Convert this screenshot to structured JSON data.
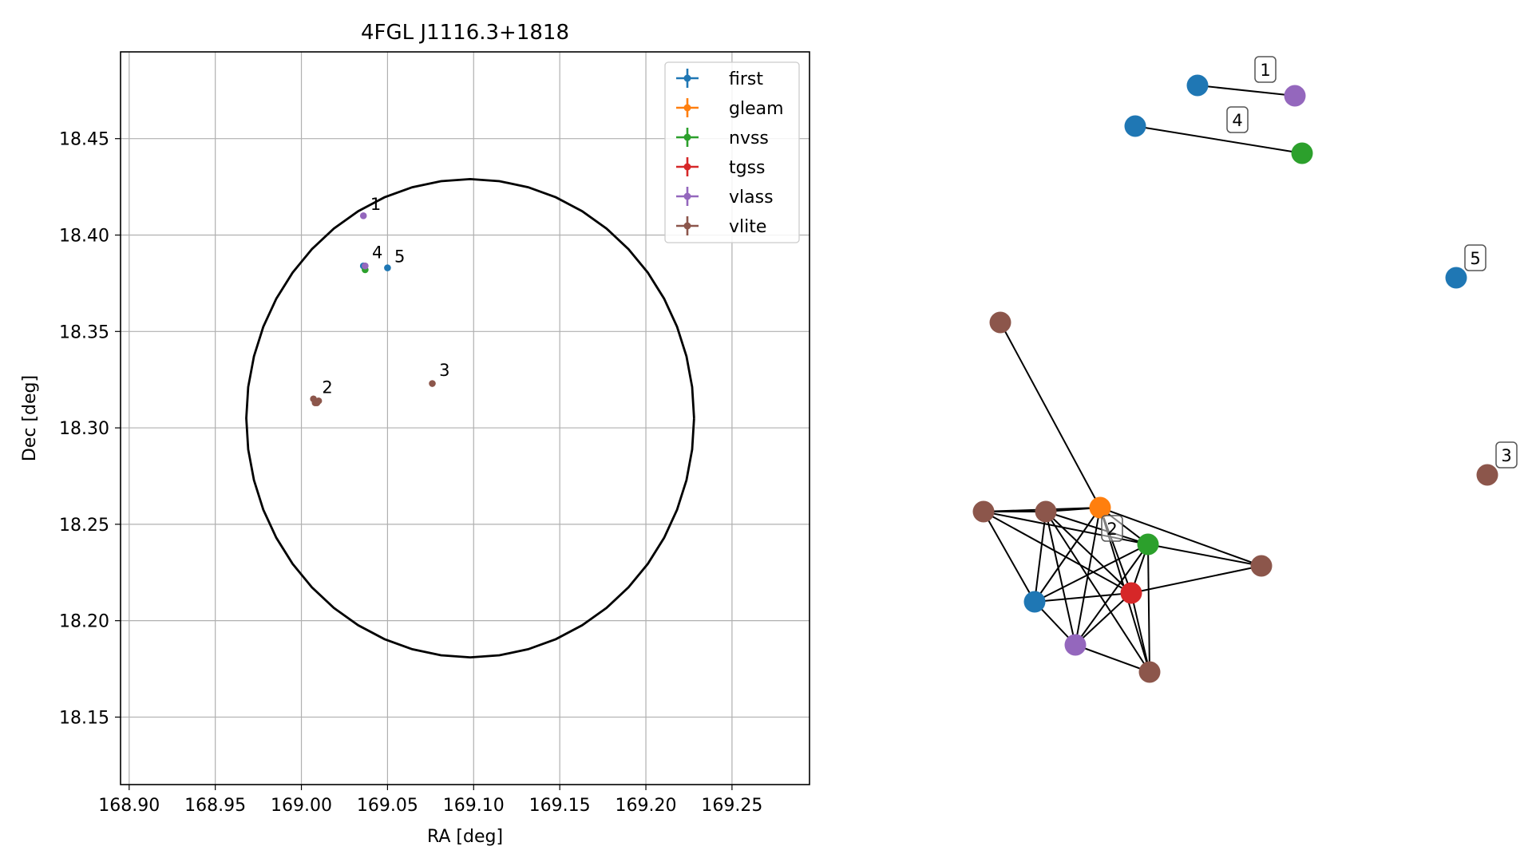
{
  "chart_data": [
    {
      "type": "scatter",
      "title": "4FGL J1116.3+1818",
      "xlabel": "RA [deg]",
      "ylabel": "Dec [deg]",
      "xlim": [
        168.895,
        169.295
      ],
      "ylim": [
        18.115,
        18.495
      ],
      "xticks": [
        "168.90",
        "168.95",
        "169.00",
        "169.05",
        "169.10",
        "169.15",
        "169.20",
        "169.25"
      ],
      "yticks": [
        "18.15",
        "18.20",
        "18.25",
        "18.30",
        "18.35",
        "18.40",
        "18.45"
      ],
      "grid": true,
      "legend_position": "top-right",
      "circle": {
        "center": [
          169.098,
          18.305
        ],
        "ra_radius": 0.13,
        "dec_radius": 0.124
      },
      "series": [
        {
          "name": "first",
          "color": "#1f77b4",
          "points": [
            [
              169.036,
              18.384
            ],
            [
              169.05,
              18.383
            ]
          ]
        },
        {
          "name": "gleam",
          "color": "#ff7f0e",
          "points": []
        },
        {
          "name": "nvss",
          "color": "#2ca02c",
          "points": [
            [
              169.037,
              18.382
            ]
          ]
        },
        {
          "name": "tgss",
          "color": "#d62728",
          "points": []
        },
        {
          "name": "vlass",
          "color": "#9467bd",
          "points": [
            [
              169.036,
              18.41
            ],
            [
              169.037,
              18.384
            ]
          ]
        },
        {
          "name": "vlite",
          "color": "#8c564b",
          "points": [
            [
              169.007,
              18.315
            ],
            [
              169.008,
              18.313
            ],
            [
              169.009,
              18.313
            ],
            [
              169.01,
              18.314
            ],
            [
              169.076,
              18.323
            ]
          ]
        }
      ],
      "annotations": [
        {
          "text": "1",
          "x": 169.04,
          "y": 18.413
        },
        {
          "text": "4",
          "x": 169.041,
          "y": 18.388
        },
        {
          "text": "5",
          "x": 169.054,
          "y": 18.386
        },
        {
          "text": "2",
          "x": 169.012,
          "y": 18.318
        },
        {
          "text": "3",
          "x": 169.08,
          "y": 18.327
        }
      ]
    },
    {
      "type": "network",
      "nodes": [
        {
          "id": "n1a",
          "color": "#1f77b4"
        },
        {
          "id": "n1b",
          "color": "#9467bd"
        },
        {
          "id": "n4a",
          "color": "#1f77b4"
        },
        {
          "id": "n4b",
          "color": "#2ca02c"
        },
        {
          "id": "n5",
          "color": "#1f77b4"
        },
        {
          "id": "n3",
          "color": "#8c564b"
        },
        {
          "id": "v1",
          "color": "#8c564b"
        },
        {
          "id": "g",
          "color": "#ff7f0e"
        },
        {
          "id": "v2",
          "color": "#8c564b"
        },
        {
          "id": "v3",
          "color": "#8c564b"
        },
        {
          "id": "nv",
          "color": "#2ca02c"
        },
        {
          "id": "v4",
          "color": "#8c564b"
        },
        {
          "id": "t",
          "color": "#d62728"
        },
        {
          "id": "f",
          "color": "#1f77b4"
        },
        {
          "id": "vl",
          "color": "#9467bd"
        },
        {
          "id": "v5",
          "color": "#8c564b"
        }
      ],
      "edges": [
        [
          "n1a",
          "n1b"
        ],
        [
          "n4a",
          "n4b"
        ],
        [
          "v1",
          "g"
        ],
        [
          "v2",
          "g"
        ],
        [
          "v2",
          "v3"
        ],
        [
          "v2",
          "nv"
        ],
        [
          "v2",
          "t"
        ],
        [
          "v2",
          "f"
        ],
        [
          "v3",
          "g"
        ],
        [
          "v3",
          "nv"
        ],
        [
          "v3",
          "t"
        ],
        [
          "v3",
          "f"
        ],
        [
          "v3",
          "vl"
        ],
        [
          "v3",
          "v5"
        ],
        [
          "g",
          "nv"
        ],
        [
          "g",
          "t"
        ],
        [
          "g",
          "f"
        ],
        [
          "g",
          "vl"
        ],
        [
          "g",
          "v5"
        ],
        [
          "g",
          "v4"
        ],
        [
          "nv",
          "t"
        ],
        [
          "nv",
          "f"
        ],
        [
          "nv",
          "vl"
        ],
        [
          "nv",
          "v5"
        ],
        [
          "nv",
          "v4"
        ],
        [
          "t",
          "f"
        ],
        [
          "t",
          "vl"
        ],
        [
          "t",
          "v5"
        ],
        [
          "t",
          "v4"
        ],
        [
          "f",
          "vl"
        ],
        [
          "vl",
          "v5"
        ]
      ],
      "labels": [
        "1",
        "4",
        "5",
        "3",
        "2"
      ]
    }
  ]
}
